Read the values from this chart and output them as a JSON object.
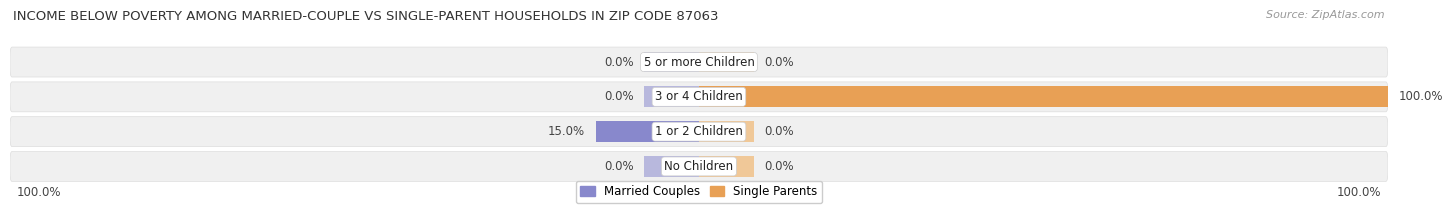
{
  "title": "INCOME BELOW POVERTY AMONG MARRIED-COUPLE VS SINGLE-PARENT HOUSEHOLDS IN ZIP CODE 87063",
  "source": "Source: ZipAtlas.com",
  "categories": [
    "No Children",
    "1 or 2 Children",
    "3 or 4 Children",
    "5 or more Children"
  ],
  "married_values": [
    0.0,
    15.0,
    0.0,
    0.0
  ],
  "single_values": [
    0.0,
    0.0,
    100.0,
    0.0
  ],
  "married_color": "#8888cc",
  "married_color_light": "#b8b8dd",
  "single_color": "#e8a055",
  "single_color_light": "#f0c898",
  "row_bg_color": "#eeeeee",
  "row_stripe_color": "#f7f7f7",
  "xlim": 100,
  "min_stub": 8.0,
  "legend_married": "Married Couples",
  "legend_single": "Single Parents",
  "title_fontsize": 9.5,
  "source_fontsize": 8,
  "label_fontsize": 8.5,
  "category_fontsize": 8.5
}
